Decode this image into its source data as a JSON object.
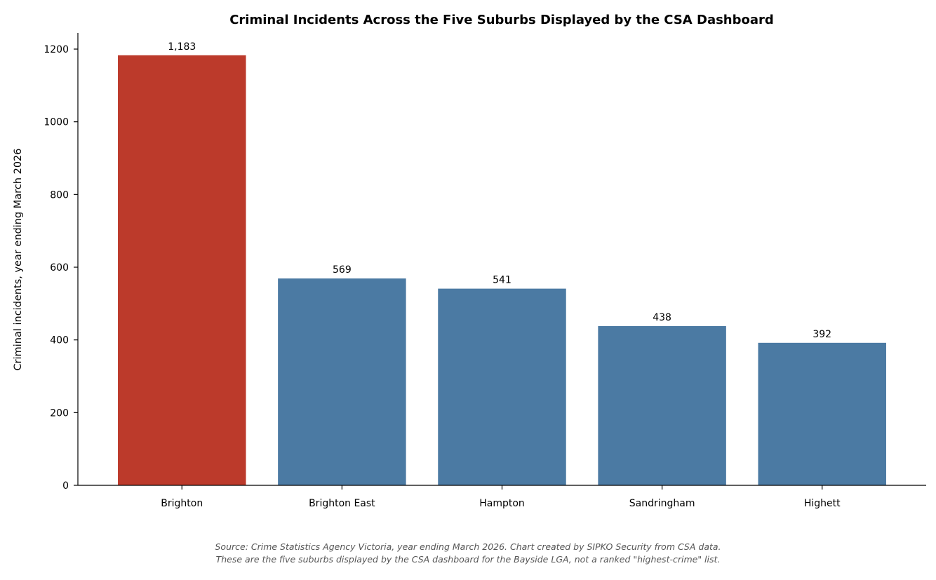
{
  "chart_data": {
    "type": "bar",
    "title": "Criminal Incidents Across the Five Suburbs Displayed by the CSA Dashboard",
    "xlabel": "",
    "ylabel": "Criminal incidents, year ending March 2026",
    "categories": [
      "Brighton",
      "Brighton East",
      "Hampton",
      "Sandringham",
      "Highett"
    ],
    "values": [
      1183,
      569,
      541,
      438,
      392
    ],
    "value_labels": [
      "1,183",
      "569",
      "541",
      "438",
      "392"
    ],
    "ylim": [
      0,
      1240
    ],
    "yticks": [
      0,
      200,
      400,
      600,
      800,
      1000,
      1200
    ],
    "ytick_labels": [
      "0",
      "200",
      "400",
      "600",
      "800",
      "1000",
      "1200"
    ],
    "grid": false,
    "colors": {
      "highlight": "#bc3a2b",
      "default": "#4b7aa3",
      "highlight_category": "Brighton"
    }
  },
  "source_note": {
    "line1": "Source: Crime Statistics Agency Victoria, year ending March 2026. Chart created by SIPKO Security from CSA data.",
    "line2": "These are the five suburbs displayed by the CSA dashboard for the Bayside LGA, not a ranked \"highest-crime\" list."
  }
}
